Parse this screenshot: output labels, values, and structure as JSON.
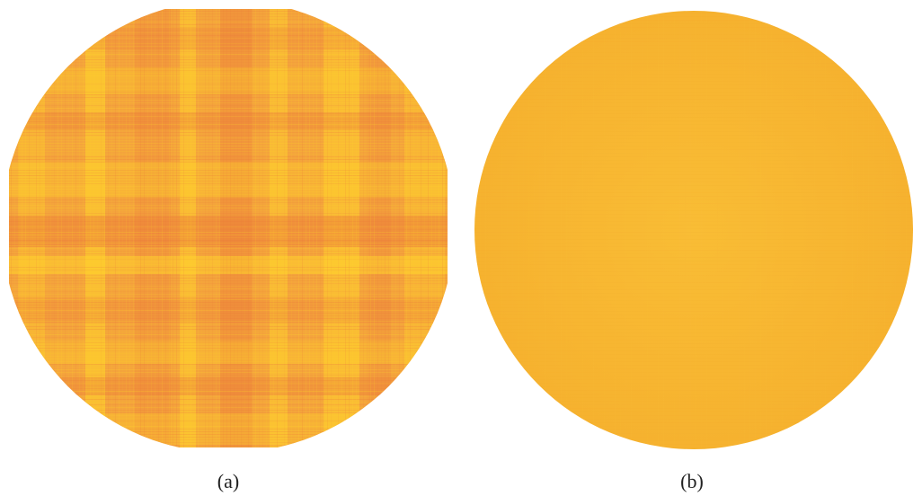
{
  "panels": [
    {
      "caption": "(a)"
    },
    {
      "caption": "(b)"
    }
  ],
  "colors": {
    "background": "#ffffff",
    "panel_a_base": "#f4a43c",
    "panel_a_dark": "#ec7a3a",
    "panel_a_light": "#ffd42c",
    "panel_b_base": "#f8b833",
    "caption_text": "#222222"
  }
}
